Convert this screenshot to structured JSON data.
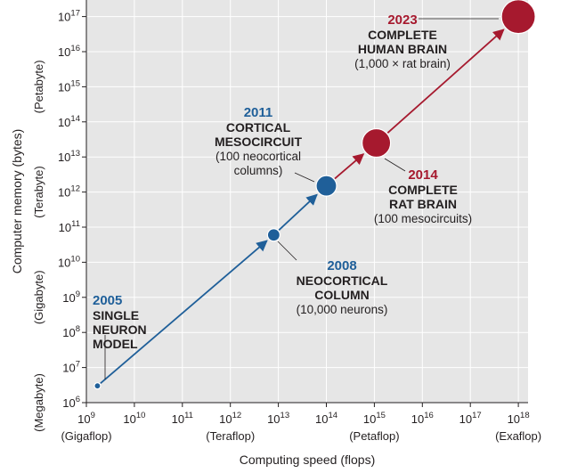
{
  "chart_data": {
    "type": "scatter",
    "xlabel": "Computing speed (flops)",
    "ylabel": "Computer memory (bytes)",
    "x_scale": "log",
    "y_scale": "log",
    "xlim": [
      1000000000.0,
      1e+18
    ],
    "ylim": [
      1000000.0,
      1e+17
    ],
    "grid": true,
    "x_ticks": [
      {
        "exp": 9,
        "unit": "(Gigaflop)"
      },
      {
        "exp": 10,
        "unit": ""
      },
      {
        "exp": 11,
        "unit": ""
      },
      {
        "exp": 12,
        "unit": "(Teraflop)"
      },
      {
        "exp": 13,
        "unit": ""
      },
      {
        "exp": 14,
        "unit": ""
      },
      {
        "exp": 15,
        "unit": "(Petaflop)"
      },
      {
        "exp": 16,
        "unit": ""
      },
      {
        "exp": 17,
        "unit": ""
      },
      {
        "exp": 18,
        "unit": "(Exaflop)"
      }
    ],
    "y_ticks": [
      {
        "exp": 6,
        "unit": "(Megabyte)"
      },
      {
        "exp": 7,
        "unit": ""
      },
      {
        "exp": 8,
        "unit": ""
      },
      {
        "exp": 9,
        "unit": "(Gigabyte)"
      },
      {
        "exp": 10,
        "unit": ""
      },
      {
        "exp": 11,
        "unit": ""
      },
      {
        "exp": 12,
        "unit": "(Terabyte)"
      },
      {
        "exp": 13,
        "unit": ""
      },
      {
        "exp": 14,
        "unit": ""
      },
      {
        "exp": 15,
        "unit": "(Petabyte)"
      },
      {
        "exp": 16,
        "unit": ""
      },
      {
        "exp": 17,
        "unit": ""
      }
    ],
    "points": [
      {
        "year": "2005",
        "title": [
          "SINGLE",
          "NEURON",
          "MODEL"
        ],
        "sub": [],
        "x": 1700000000.0,
        "y": 3000000.0,
        "color": "#1f5f99"
      },
      {
        "year": "2008",
        "title": [
          "NEOCORTICAL",
          "COLUMN"
        ],
        "sub": [
          "(10,000 neurons)"
        ],
        "x": 8000000000000.0,
        "y": 60000000000.0,
        "color": "#1f5f99"
      },
      {
        "year": "2011",
        "title": [
          "CORTICAL",
          "MESOCIRCUIT"
        ],
        "sub": [
          "(100 neocortical",
          "columns)"
        ],
        "x": 100000000000000.0,
        "y": 1500000000000.0,
        "color": "#1f5f99"
      },
      {
        "year": "2014",
        "title": [
          "COMPLETE",
          "RAT BRAIN"
        ],
        "sub": [
          "(100 mesocircuits)"
        ],
        "x": 1100000000000000.0,
        "y": 25000000000000.0,
        "color": "#a6192e"
      },
      {
        "year": "2023",
        "title": [
          "COMPLETE",
          "HUMAN BRAIN"
        ],
        "sub": [
          "(1,000 × rat brain)"
        ],
        "x": 1e+18,
        "y": 1e+17,
        "color": "#a6192e"
      }
    ],
    "colors": {
      "blue": "#1f5f99",
      "red": "#a6192e",
      "plot_bg": "#e6e6e6",
      "grid": "#ffffff"
    }
  }
}
